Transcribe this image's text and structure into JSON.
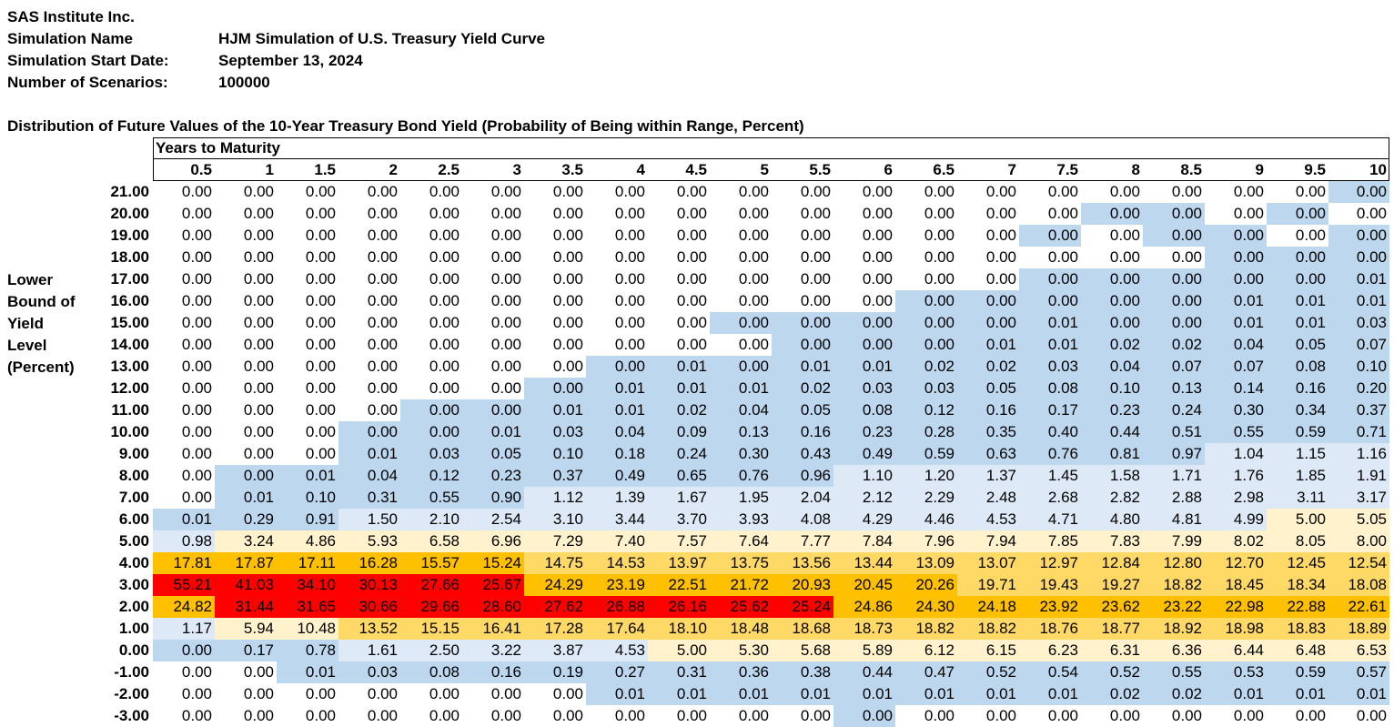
{
  "header": {
    "company": "SAS Institute Inc.",
    "fields": [
      {
        "label": "Simulation Name",
        "value": "HJM Simulation of U.S. Treasury Yield Curve"
      },
      {
        "label": "Simulation Start Date:",
        "value": "September 13, 2024"
      },
      {
        "label": "Number of Scenarios:",
        "value": "100000"
      }
    ]
  },
  "table_title": "Distribution of Future Values of the 10-Year Treasury Bond Yield (Probability of Being within Range, Percent)",
  "column_group_label": "Years to Maturity",
  "row_axis_label": [
    "Lower",
    "Bound of",
    "Yield",
    "Level",
    "(Percent)"
  ],
  "columns": [
    "0.5",
    "1",
    "1.5",
    "2",
    "2.5",
    "3",
    "3.5",
    "4",
    "4.5",
    "5",
    "5.5",
    "6",
    "6.5",
    "7",
    "7.5",
    "8",
    "8.5",
    "9",
    "9.5",
    "10"
  ],
  "colors": {
    "white": "#ffffff",
    "light_blue": "#dde9f6",
    "blue": "#bdd7ee",
    "cream": "#fff2cc",
    "yellow": "#ffd966",
    "orange": "#ffc000",
    "red": "#ff0000"
  },
  "rows": [
    {
      "label": "21.00",
      "values": [
        "0.00",
        "0.00",
        "0.00",
        "0.00",
        "0.00",
        "0.00",
        "0.00",
        "0.00",
        "0.00",
        "0.00",
        "0.00",
        "0.00",
        "0.00",
        "0.00",
        "0.00",
        "0.00",
        "0.00",
        "0.00",
        "0.00",
        "0.00"
      ],
      "fills": [
        "w",
        "w",
        "w",
        "w",
        "w",
        "w",
        "w",
        "w",
        "w",
        "w",
        "w",
        "w",
        "w",
        "w",
        "w",
        "w",
        "w",
        "w",
        "w",
        "b"
      ]
    },
    {
      "label": "20.00",
      "values": [
        "0.00",
        "0.00",
        "0.00",
        "0.00",
        "0.00",
        "0.00",
        "0.00",
        "0.00",
        "0.00",
        "0.00",
        "0.00",
        "0.00",
        "0.00",
        "0.00",
        "0.00",
        "0.00",
        "0.00",
        "0.00",
        "0.00",
        "0.00"
      ],
      "fills": [
        "w",
        "w",
        "w",
        "w",
        "w",
        "w",
        "w",
        "w",
        "w",
        "w",
        "w",
        "w",
        "w",
        "w",
        "w",
        "b",
        "b",
        "w",
        "b",
        "w"
      ]
    },
    {
      "label": "19.00",
      "values": [
        "0.00",
        "0.00",
        "0.00",
        "0.00",
        "0.00",
        "0.00",
        "0.00",
        "0.00",
        "0.00",
        "0.00",
        "0.00",
        "0.00",
        "0.00",
        "0.00",
        "0.00",
        "0.00",
        "0.00",
        "0.00",
        "0.00",
        "0.00"
      ],
      "fills": [
        "w",
        "w",
        "w",
        "w",
        "w",
        "w",
        "w",
        "w",
        "w",
        "w",
        "w",
        "w",
        "w",
        "w",
        "b",
        "w",
        "b",
        "b",
        "w",
        "b"
      ]
    },
    {
      "label": "18.00",
      "values": [
        "0.00",
        "0.00",
        "0.00",
        "0.00",
        "0.00",
        "0.00",
        "0.00",
        "0.00",
        "0.00",
        "0.00",
        "0.00",
        "0.00",
        "0.00",
        "0.00",
        "0.00",
        "0.00",
        "0.00",
        "0.00",
        "0.00",
        "0.00"
      ],
      "fills": [
        "w",
        "w",
        "w",
        "w",
        "w",
        "w",
        "w",
        "w",
        "w",
        "w",
        "w",
        "w",
        "w",
        "w",
        "w",
        "w",
        "w",
        "b",
        "b",
        "b"
      ]
    },
    {
      "label": "17.00",
      "values": [
        "0.00",
        "0.00",
        "0.00",
        "0.00",
        "0.00",
        "0.00",
        "0.00",
        "0.00",
        "0.00",
        "0.00",
        "0.00",
        "0.00",
        "0.00",
        "0.00",
        "0.00",
        "0.00",
        "0.00",
        "0.00",
        "0.00",
        "0.01"
      ],
      "fills": [
        "w",
        "w",
        "w",
        "w",
        "w",
        "w",
        "w",
        "w",
        "w",
        "w",
        "w",
        "w",
        "w",
        "w",
        "b",
        "b",
        "b",
        "b",
        "b",
        "b"
      ]
    },
    {
      "label": "16.00",
      "values": [
        "0.00",
        "0.00",
        "0.00",
        "0.00",
        "0.00",
        "0.00",
        "0.00",
        "0.00",
        "0.00",
        "0.00",
        "0.00",
        "0.00",
        "0.00",
        "0.00",
        "0.00",
        "0.00",
        "0.00",
        "0.01",
        "0.01",
        "0.01"
      ],
      "fills": [
        "w",
        "w",
        "w",
        "w",
        "w",
        "w",
        "w",
        "w",
        "w",
        "w",
        "w",
        "w",
        "b",
        "b",
        "b",
        "b",
        "b",
        "b",
        "b",
        "b"
      ]
    },
    {
      "label": "15.00",
      "values": [
        "0.00",
        "0.00",
        "0.00",
        "0.00",
        "0.00",
        "0.00",
        "0.00",
        "0.00",
        "0.00",
        "0.00",
        "0.00",
        "0.00",
        "0.00",
        "0.00",
        "0.01",
        "0.00",
        "0.00",
        "0.01",
        "0.01",
        "0.03"
      ],
      "fills": [
        "w",
        "w",
        "w",
        "w",
        "w",
        "w",
        "w",
        "w",
        "w",
        "b",
        "b",
        "b",
        "b",
        "b",
        "b",
        "b",
        "b",
        "b",
        "b",
        "b"
      ]
    },
    {
      "label": "14.00",
      "values": [
        "0.00",
        "0.00",
        "0.00",
        "0.00",
        "0.00",
        "0.00",
        "0.00",
        "0.00",
        "0.00",
        "0.00",
        "0.00",
        "0.00",
        "0.00",
        "0.01",
        "0.01",
        "0.02",
        "0.02",
        "0.04",
        "0.05",
        "0.07"
      ],
      "fills": [
        "w",
        "w",
        "w",
        "w",
        "w",
        "w",
        "w",
        "w",
        "w",
        "w",
        "b",
        "b",
        "b",
        "b",
        "b",
        "b",
        "b",
        "b",
        "b",
        "b"
      ]
    },
    {
      "label": "13.00",
      "values": [
        "0.00",
        "0.00",
        "0.00",
        "0.00",
        "0.00",
        "0.00",
        "0.00",
        "0.00",
        "0.01",
        "0.00",
        "0.01",
        "0.01",
        "0.02",
        "0.02",
        "0.03",
        "0.04",
        "0.07",
        "0.07",
        "0.08",
        "0.10"
      ],
      "fills": [
        "w",
        "w",
        "w",
        "w",
        "w",
        "w",
        "w",
        "b",
        "b",
        "b",
        "b",
        "b",
        "b",
        "b",
        "b",
        "b",
        "b",
        "b",
        "b",
        "b"
      ]
    },
    {
      "label": "12.00",
      "values": [
        "0.00",
        "0.00",
        "0.00",
        "0.00",
        "0.00",
        "0.00",
        "0.00",
        "0.01",
        "0.01",
        "0.01",
        "0.02",
        "0.03",
        "0.03",
        "0.05",
        "0.08",
        "0.10",
        "0.13",
        "0.14",
        "0.16",
        "0.20"
      ],
      "fills": [
        "w",
        "w",
        "w",
        "w",
        "w",
        "w",
        "b",
        "b",
        "b",
        "b",
        "b",
        "b",
        "b",
        "b",
        "b",
        "b",
        "b",
        "b",
        "b",
        "b"
      ]
    },
    {
      "label": "11.00",
      "values": [
        "0.00",
        "0.00",
        "0.00",
        "0.00",
        "0.00",
        "0.00",
        "0.01",
        "0.01",
        "0.02",
        "0.04",
        "0.05",
        "0.08",
        "0.12",
        "0.16",
        "0.17",
        "0.23",
        "0.24",
        "0.30",
        "0.34",
        "0.37"
      ],
      "fills": [
        "w",
        "w",
        "w",
        "w",
        "b",
        "b",
        "b",
        "b",
        "b",
        "b",
        "b",
        "b",
        "b",
        "b",
        "b",
        "b",
        "b",
        "b",
        "b",
        "b"
      ]
    },
    {
      "label": "10.00",
      "values": [
        "0.00",
        "0.00",
        "0.00",
        "0.00",
        "0.00",
        "0.01",
        "0.03",
        "0.04",
        "0.09",
        "0.13",
        "0.16",
        "0.23",
        "0.28",
        "0.35",
        "0.40",
        "0.44",
        "0.51",
        "0.55",
        "0.59",
        "0.71"
      ],
      "fills": [
        "w",
        "w",
        "w",
        "b",
        "b",
        "b",
        "b",
        "b",
        "b",
        "b",
        "b",
        "b",
        "b",
        "b",
        "b",
        "b",
        "b",
        "b",
        "b",
        "b"
      ]
    },
    {
      "label": "9.00",
      "values": [
        "0.00",
        "0.00",
        "0.00",
        "0.01",
        "0.03",
        "0.05",
        "0.10",
        "0.18",
        "0.24",
        "0.30",
        "0.43",
        "0.49",
        "0.59",
        "0.63",
        "0.76",
        "0.81",
        "0.97",
        "1.04",
        "1.15",
        "1.16"
      ],
      "fills": [
        "w",
        "w",
        "w",
        "b",
        "b",
        "b",
        "b",
        "b",
        "b",
        "b",
        "b",
        "b",
        "b",
        "b",
        "b",
        "b",
        "b",
        "l",
        "l",
        "l"
      ]
    },
    {
      "label": "8.00",
      "values": [
        "0.00",
        "0.00",
        "0.01",
        "0.04",
        "0.12",
        "0.23",
        "0.37",
        "0.49",
        "0.65",
        "0.76",
        "0.96",
        "1.10",
        "1.20",
        "1.37",
        "1.45",
        "1.58",
        "1.71",
        "1.76",
        "1.85",
        "1.91"
      ],
      "fills": [
        "w",
        "b",
        "b",
        "b",
        "b",
        "b",
        "b",
        "b",
        "b",
        "b",
        "b",
        "l",
        "l",
        "l",
        "l",
        "l",
        "l",
        "l",
        "l",
        "l"
      ]
    },
    {
      "label": "7.00",
      "values": [
        "0.00",
        "0.01",
        "0.10",
        "0.31",
        "0.55",
        "0.90",
        "1.12",
        "1.39",
        "1.67",
        "1.95",
        "2.04",
        "2.12",
        "2.29",
        "2.48",
        "2.68",
        "2.82",
        "2.88",
        "2.98",
        "3.11",
        "3.17"
      ],
      "fills": [
        "w",
        "b",
        "b",
        "b",
        "b",
        "b",
        "l",
        "l",
        "l",
        "l",
        "l",
        "l",
        "l",
        "l",
        "l",
        "l",
        "l",
        "l",
        "l",
        "l"
      ]
    },
    {
      "label": "6.00",
      "values": [
        "0.01",
        "0.29",
        "0.91",
        "1.50",
        "2.10",
        "2.54",
        "3.10",
        "3.44",
        "3.70",
        "3.93",
        "4.08",
        "4.29",
        "4.46",
        "4.53",
        "4.71",
        "4.80",
        "4.81",
        "4.99",
        "5.00",
        "5.05"
      ],
      "fills": [
        "b",
        "b",
        "b",
        "l",
        "l",
        "l",
        "l",
        "l",
        "l",
        "l",
        "l",
        "l",
        "l",
        "l",
        "l",
        "l",
        "l",
        "l",
        "c",
        "c"
      ]
    },
    {
      "label": "5.00",
      "values": [
        "0.98",
        "3.24",
        "4.86",
        "5.93",
        "6.58",
        "6.96",
        "7.29",
        "7.40",
        "7.57",
        "7.64",
        "7.77",
        "7.84",
        "7.96",
        "7.94",
        "7.85",
        "7.83",
        "7.99",
        "8.02",
        "8.05",
        "8.00"
      ],
      "fills": [
        "l",
        "c",
        "c",
        "c",
        "c",
        "c",
        "c",
        "c",
        "c",
        "c",
        "c",
        "c",
        "c",
        "c",
        "c",
        "c",
        "c",
        "c",
        "c",
        "c"
      ]
    },
    {
      "label": "4.00",
      "values": [
        "17.81",
        "17.87",
        "17.11",
        "16.28",
        "15.57",
        "15.24",
        "14.75",
        "14.53",
        "13.97",
        "13.75",
        "13.56",
        "13.44",
        "13.09",
        "13.07",
        "12.97",
        "12.84",
        "12.80",
        "12.70",
        "12.45",
        "12.54"
      ],
      "fills": [
        "o",
        "o",
        "o",
        "o",
        "o",
        "o",
        "y",
        "y",
        "y",
        "y",
        "y",
        "y",
        "y",
        "y",
        "y",
        "y",
        "y",
        "y",
        "y",
        "y"
      ]
    },
    {
      "label": "3.00",
      "values": [
        "55.21",
        "41.03",
        "34.10",
        "30.13",
        "27.66",
        "25.67",
        "24.29",
        "23.19",
        "22.51",
        "21.72",
        "20.93",
        "20.45",
        "20.26",
        "19.71",
        "19.43",
        "19.27",
        "18.82",
        "18.45",
        "18.34",
        "18.08"
      ],
      "fills": [
        "r",
        "r",
        "r",
        "r",
        "r",
        "r",
        "o",
        "o",
        "o",
        "o",
        "o",
        "o",
        "o",
        "y",
        "y",
        "y",
        "y",
        "y",
        "y",
        "y"
      ]
    },
    {
      "label": "2.00",
      "values": [
        "24.82",
        "31.44",
        "31.65",
        "30.66",
        "29.66",
        "28.60",
        "27.62",
        "26.88",
        "26.16",
        "25.62",
        "25.24",
        "24.86",
        "24.30",
        "24.18",
        "23.92",
        "23.62",
        "23.22",
        "22.98",
        "22.88",
        "22.61"
      ],
      "fills": [
        "o",
        "r",
        "r",
        "r",
        "r",
        "r",
        "r",
        "r",
        "r",
        "r",
        "r",
        "o",
        "o",
        "o",
        "o",
        "o",
        "o",
        "o",
        "o",
        "o"
      ]
    },
    {
      "label": "1.00",
      "values": [
        "1.17",
        "5.94",
        "10.48",
        "13.52",
        "15.15",
        "16.41",
        "17.28",
        "17.64",
        "18.10",
        "18.48",
        "18.68",
        "18.73",
        "18.82",
        "18.82",
        "18.76",
        "18.77",
        "18.92",
        "18.98",
        "18.83",
        "18.89"
      ],
      "fills": [
        "l",
        "c",
        "c",
        "y",
        "y",
        "y",
        "y",
        "y",
        "y",
        "y",
        "y",
        "y",
        "y",
        "y",
        "y",
        "y",
        "y",
        "y",
        "y",
        "y"
      ]
    },
    {
      "label": "0.00",
      "values": [
        "0.00",
        "0.17",
        "0.78",
        "1.61",
        "2.50",
        "3.22",
        "3.87",
        "4.53",
        "5.00",
        "5.30",
        "5.68",
        "5.89",
        "6.12",
        "6.15",
        "6.23",
        "6.31",
        "6.36",
        "6.44",
        "6.48",
        "6.53"
      ],
      "fills": [
        "b",
        "b",
        "b",
        "l",
        "l",
        "l",
        "l",
        "l",
        "c",
        "c",
        "c",
        "c",
        "c",
        "c",
        "c",
        "c",
        "c",
        "c",
        "c",
        "c"
      ]
    },
    {
      "label": "-1.00",
      "values": [
        "0.00",
        "0.00",
        "0.01",
        "0.03",
        "0.08",
        "0.16",
        "0.19",
        "0.27",
        "0.31",
        "0.36",
        "0.38",
        "0.44",
        "0.47",
        "0.52",
        "0.54",
        "0.52",
        "0.55",
        "0.53",
        "0.59",
        "0.57"
      ],
      "fills": [
        "w",
        "w",
        "b",
        "b",
        "b",
        "b",
        "b",
        "b",
        "b",
        "b",
        "b",
        "b",
        "b",
        "b",
        "b",
        "b",
        "b",
        "b",
        "b",
        "b"
      ]
    },
    {
      "label": "-2.00",
      "values": [
        "0.00",
        "0.00",
        "0.00",
        "0.00",
        "0.00",
        "0.00",
        "0.00",
        "0.01",
        "0.01",
        "0.01",
        "0.01",
        "0.01",
        "0.01",
        "0.01",
        "0.01",
        "0.02",
        "0.02",
        "0.01",
        "0.01",
        "0.01"
      ],
      "fills": [
        "w",
        "w",
        "w",
        "w",
        "w",
        "w",
        "w",
        "b",
        "b",
        "b",
        "b",
        "b",
        "b",
        "b",
        "b",
        "b",
        "b",
        "b",
        "b",
        "b"
      ]
    },
    {
      "label": "-3.00",
      "values": [
        "0.00",
        "0.00",
        "0.00",
        "0.00",
        "0.00",
        "0.00",
        "0.00",
        "0.00",
        "0.00",
        "0.00",
        "0.00",
        "0.00",
        "0.00",
        "0.00",
        "0.00",
        "0.00",
        "0.00",
        "0.00",
        "0.00",
        "0.00"
      ],
      "fills": [
        "w",
        "w",
        "w",
        "w",
        "w",
        "w",
        "w",
        "w",
        "w",
        "w",
        "w",
        "b",
        "w",
        "w",
        "w",
        "w",
        "w",
        "w",
        "w",
        "w"
      ]
    }
  ]
}
